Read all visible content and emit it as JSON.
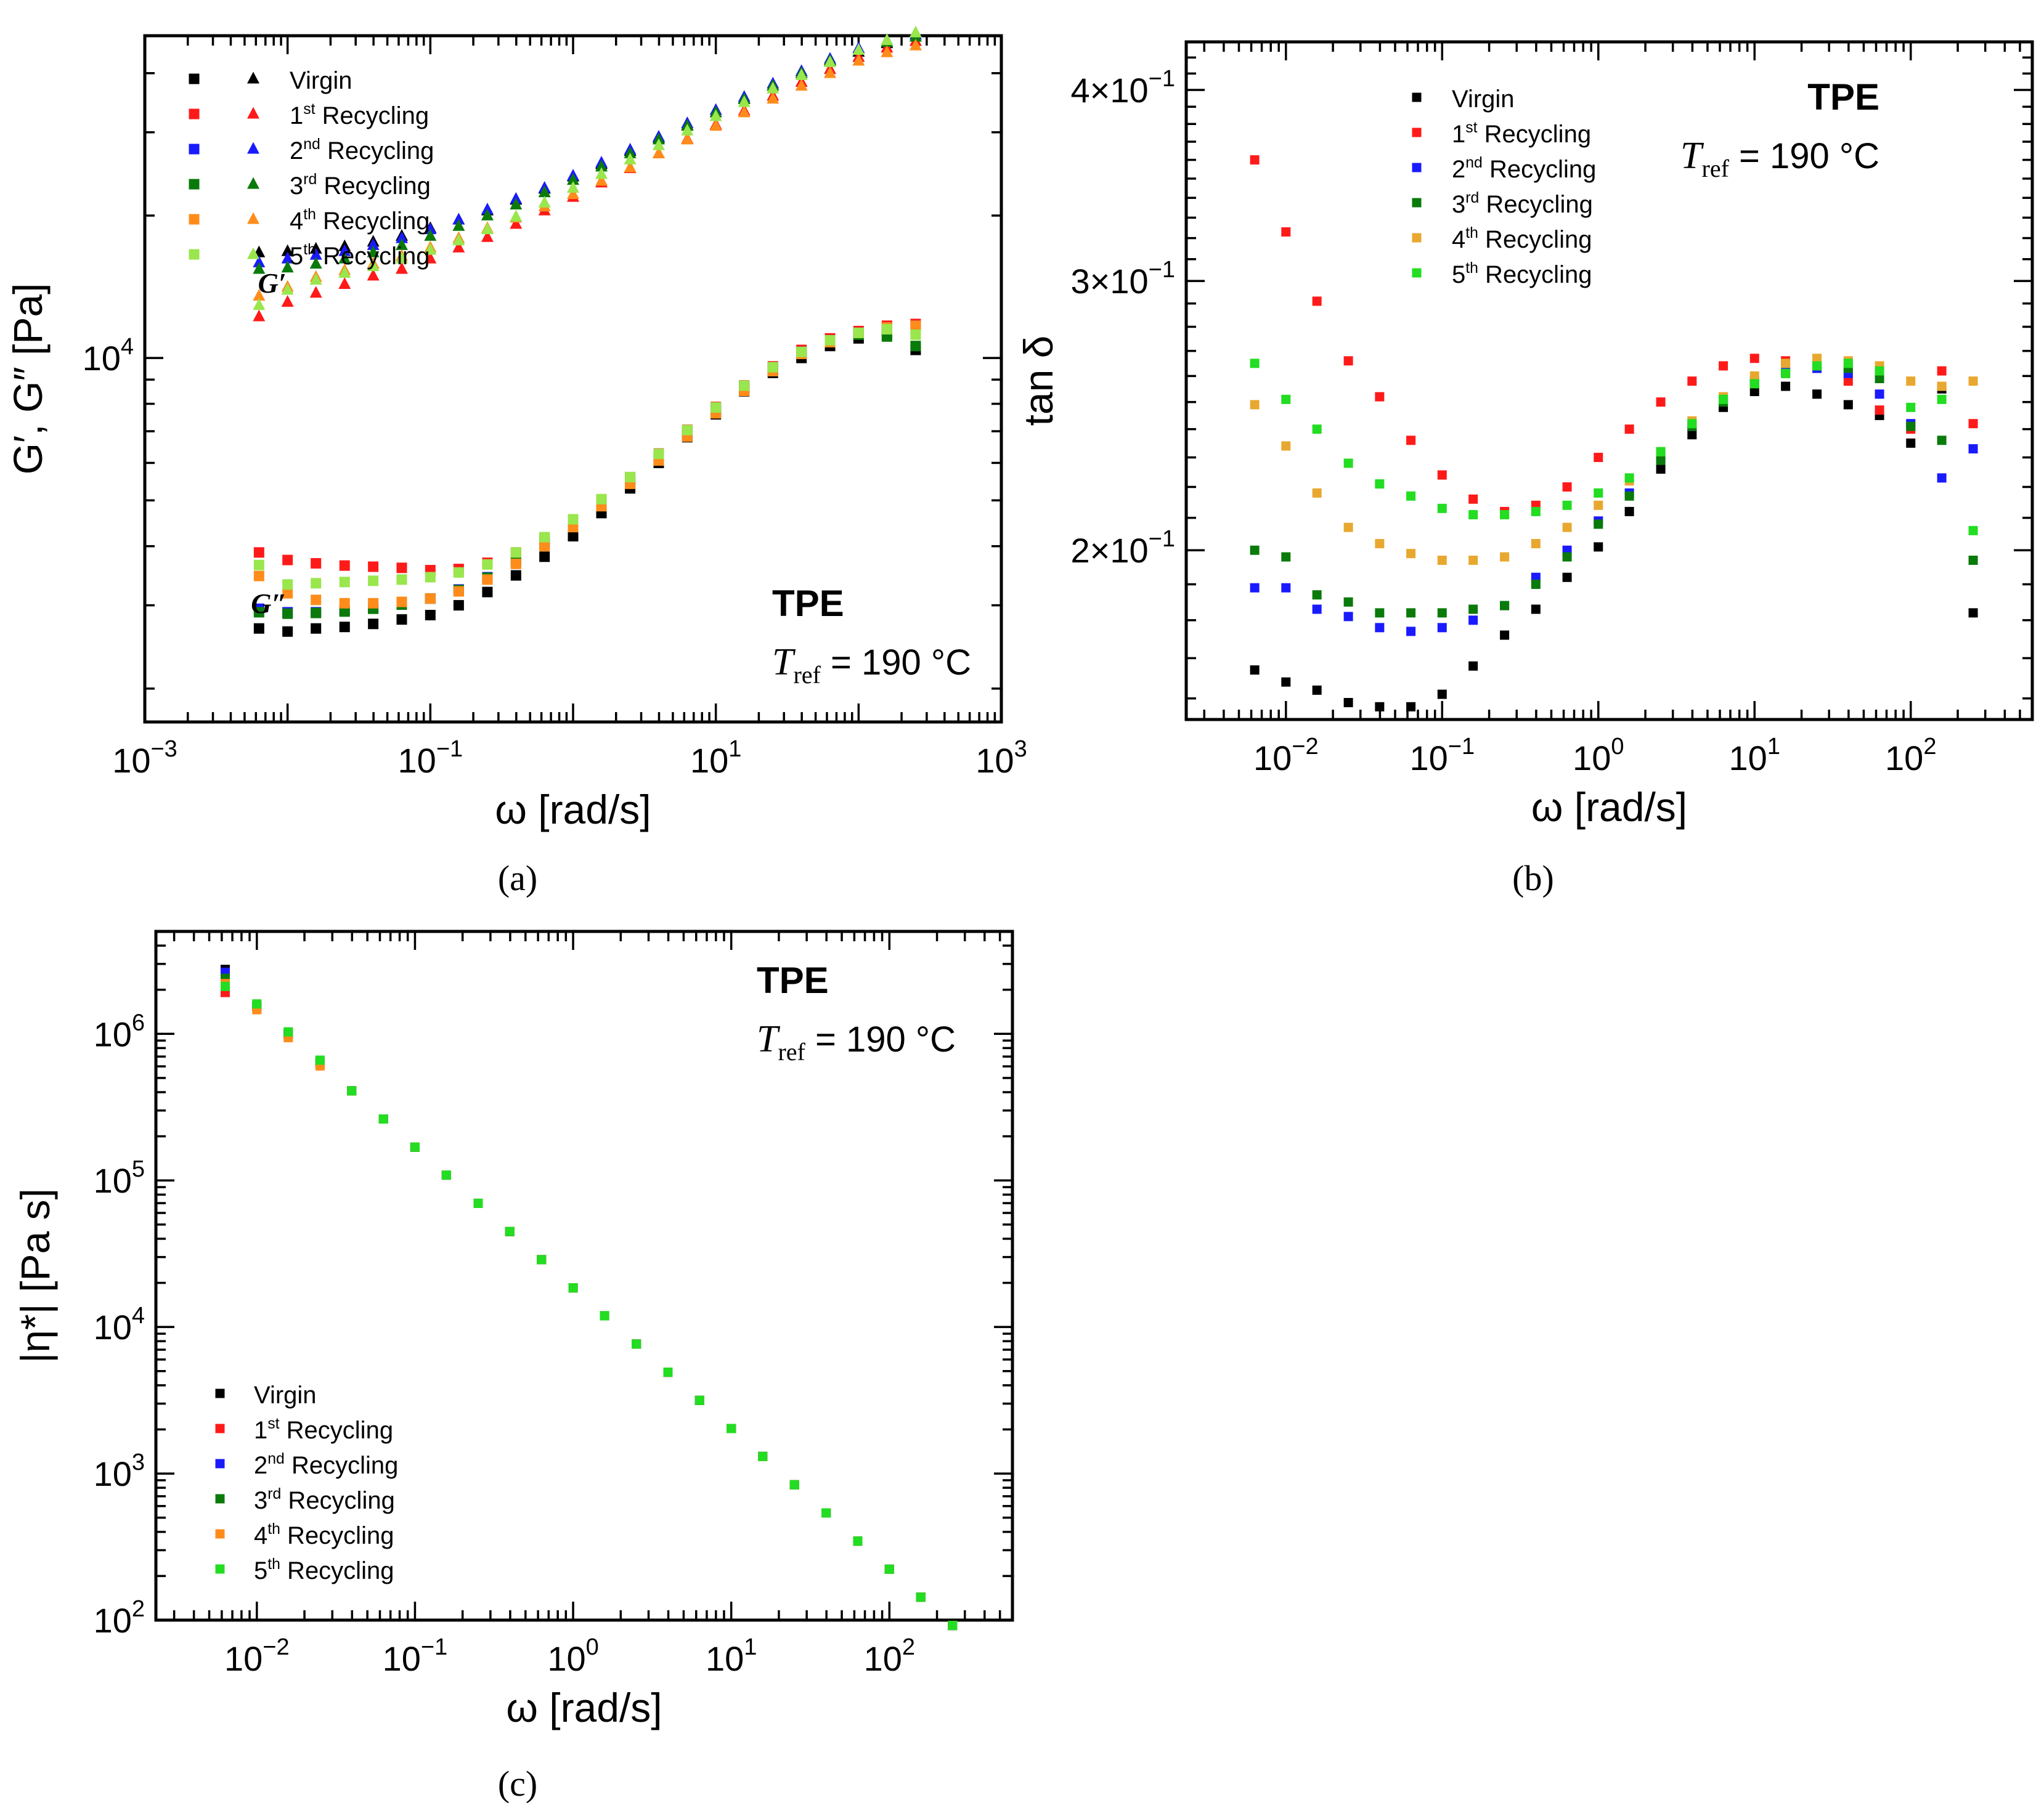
{
  "figure": {
    "colors": {
      "virgin": "#000000",
      "r1": "#ff1a1a",
      "r2": "#1a1aff",
      "r3": "#0a7a0a",
      "r4": "#ff8c1a",
      "r5": "#99e64d",
      "r4_b": "#e8a830",
      "r5_b": "#22dd22"
    },
    "legend_labels": [
      {
        "pre": "Virgin",
        "sup": "",
        "post": ""
      },
      {
        "pre": "1",
        "sup": "st",
        "post": " Recycling"
      },
      {
        "pre": "2",
        "sup": "nd",
        "post": " Recycling"
      },
      {
        "pre": "3",
        "sup": "rd",
        "post": " Recycling"
      },
      {
        "pre": "4",
        "sup": "th",
        "post": " Recycling"
      },
      {
        "pre": "5",
        "sup": "th",
        "post": " Recycling"
      }
    ],
    "material": "TPE",
    "tref": {
      "sym": "T",
      "sub": "ref",
      "val": " = 190 °C"
    },
    "captions": [
      "(a)",
      "(b)",
      "(c)"
    ]
  },
  "chart_data": [
    {
      "id": "a",
      "type": "scatter",
      "xscale": "log",
      "yscale": "log",
      "xlim": [
        0.001,
        1000
      ],
      "ylim": [
        1700,
        48000
      ],
      "xlabel": "ω [rad/s]",
      "ylabel": "G′, G″ [Pa]",
      "xticks": [
        {
          "v": 0.001,
          "b": "10",
          "e": "−3"
        },
        {
          "v": 0.1,
          "b": "10",
          "e": "−1"
        },
        {
          "v": 10,
          "b": "10",
          "e": "1"
        },
        {
          "v": 1000,
          "b": "10",
          "e": "3"
        }
      ],
      "yticks": [
        {
          "v": 10000,
          "b": "10",
          "e": "4"
        }
      ],
      "labels": [
        {
          "text": "G′",
          "omega": 0.0028,
          "value": 14500
        },
        {
          "text": "G″",
          "omega": 0.0025,
          "value": 3050
        }
      ],
      "x": [
        0.00631,
        0.01,
        0.0158,
        0.0251,
        0.0398,
        0.0631,
        0.1,
        0.158,
        0.251,
        0.398,
        0.631,
        1,
        1.58,
        2.51,
        3.98,
        6.31,
        10,
        15.8,
        25.1,
        39.8,
        63.1,
        100,
        158,
        251
      ],
      "series": [
        {
          "name": "Virgin",
          "color_key": "virgin",
          "G_prime": [
            16800,
            16900,
            17100,
            17300,
            17700,
            18200,
            18900,
            19700,
            20600,
            21700,
            22900,
            24300,
            25800,
            27500,
            29300,
            31200,
            33200,
            35500,
            37800,
            40200,
            42800,
            44600,
            46500,
            48000
          ],
          "G_double_prime": [
            2680,
            2640,
            2680,
            2700,
            2740,
            2800,
            2860,
            3000,
            3200,
            3470,
            3800,
            4200,
            4700,
            5300,
            6000,
            6800,
            7600,
            8500,
            9300,
            10000,
            10600,
            11000,
            11200,
            10400
          ]
        },
        {
          "name": "1st Recycling",
          "color_key": "r1",
          "G_prime": [
            12300,
            13200,
            13800,
            14400,
            15000,
            15500,
            16300,
            17200,
            18100,
            19300,
            20600,
            22000,
            23600,
            25300,
            27200,
            29200,
            31300,
            33500,
            36000,
            38500,
            41000,
            43500,
            45500,
            47000
          ],
          "G_double_prime": [
            3880,
            3740,
            3680,
            3640,
            3620,
            3600,
            3560,
            3580,
            3690,
            3880,
            4150,
            4540,
            5010,
            5600,
            6280,
            7050,
            7880,
            8750,
            9600,
            10400,
            11000,
            11400,
            11700,
            11800
          ]
        },
        {
          "name": "2nd Recycling",
          "color_key": "r2",
          "G_prime": [
            16000,
            16300,
            16600,
            16900,
            17400,
            18000,
            18800,
            19700,
            20700,
            21800,
            23000,
            24400,
            26000,
            27700,
            29500,
            31500,
            33600,
            35800,
            38200,
            40600,
            43100,
            45400,
            47200,
            48500
          ],
          "G_double_prime": [
            2950,
            2900,
            2900,
            2920,
            2960,
            3020,
            3100,
            3240,
            3440,
            3720,
            4060,
            4460,
            4940,
            5520,
            6200,
            6960,
            7800,
            8700,
            9550,
            10300,
            10900,
            11300,
            11600,
            11700
          ]
        },
        {
          "name": "3rd Recycling",
          "color_key": "r3",
          "G_prime": [
            15500,
            15600,
            15900,
            16300,
            16800,
            17400,
            18200,
            19100,
            20100,
            21200,
            22500,
            23900,
            25500,
            27200,
            29100,
            31100,
            33200,
            35400,
            37800,
            40200,
            42700,
            45000,
            46800,
            48000
          ],
          "G_double_prime": [
            2900,
            2880,
            2890,
            2910,
            2950,
            3010,
            3100,
            3230,
            3430,
            3700,
            4030,
            4420,
            4900,
            5460,
            6120,
            6880,
            7700,
            8600,
            9450,
            10200,
            10800,
            11200,
            11100,
            10600
          ]
        },
        {
          "name": "4th Recycling",
          "color_key": "r4",
          "G_prime": [
            13600,
            14200,
            14900,
            15400,
            15900,
            16500,
            17200,
            18000,
            18900,
            19900,
            21000,
            22300,
            23800,
            25400,
            27200,
            29100,
            31100,
            33200,
            35500,
            37800,
            40200,
            42700,
            44500,
            46000
          ],
          "G_double_prime": [
            3460,
            3180,
            3080,
            3030,
            3030,
            3050,
            3100,
            3210,
            3400,
            3670,
            4000,
            4390,
            4860,
            5420,
            6070,
            6820,
            7640,
            8520,
            9380,
            10200,
            10800,
            11300,
            11600,
            11700
          ]
        },
        {
          "name": "5th Recycling",
          "color_key": "r5",
          "G_prime": [
            13000,
            14000,
            14700,
            15200,
            15700,
            16300,
            17000,
            17800,
            18800,
            20000,
            21400,
            23000,
            24600,
            26400,
            28300,
            30400,
            32600,
            34900,
            37300,
            39800,
            42400,
            45000,
            47200,
            49000
          ],
          "G_double_prime": [
            3650,
            3320,
            3340,
            3360,
            3380,
            3400,
            3440,
            3520,
            3660,
            3880,
            4180,
            4560,
            5030,
            5600,
            6270,
            7040,
            7860,
            8740,
            9560,
            10300,
            10900,
            11300,
            11500,
            11200
          ]
        }
      ]
    },
    {
      "id": "b",
      "type": "scatter",
      "xscale": "log",
      "yscale": "log",
      "xlim": [
        0.0023,
        600
      ],
      "ylim": [
        0.155,
        0.43
      ],
      "xlabel": "ω [rad/s]",
      "ylabel": "tan δ",
      "xticks": [
        {
          "v": 0.01,
          "b": "10",
          "e": "−2"
        },
        {
          "v": 0.1,
          "b": "10",
          "e": "−1"
        },
        {
          "v": 1,
          "b": "10",
          "e": "0"
        },
        {
          "v": 10,
          "b": "10",
          "e": "1"
        },
        {
          "v": 100,
          "b": "10",
          "e": "2"
        }
      ],
      "yticks": [
        {
          "v": 0.2,
          "b": "2×10",
          "e": "−1"
        },
        {
          "v": 0.3,
          "b": "3×10",
          "e": "−1"
        },
        {
          "v": 0.4,
          "b": "4×10",
          "e": "−1"
        }
      ],
      "x": [
        0.00631,
        0.01,
        0.0158,
        0.0251,
        0.0398,
        0.0631,
        0.1,
        0.158,
        0.251,
        0.398,
        0.631,
        1,
        1.58,
        2.51,
        3.98,
        6.31,
        10,
        15.8,
        25.1,
        39.8,
        63.1,
        100,
        158,
        251
      ],
      "series": [
        {
          "name": "Virgin",
          "color_key": "virgin",
          "values": [
            0.167,
            0.164,
            0.162,
            0.159,
            0.158,
            0.158,
            0.161,
            0.168,
            0.176,
            0.183,
            0.192,
            0.201,
            0.212,
            0.226,
            0.238,
            0.248,
            0.254,
            0.256,
            0.253,
            0.249,
            0.245,
            0.235,
            0.255,
            0.182
          ]
        },
        {
          "name": "1st Recycling",
          "color_key": "r1",
          "values": [
            0.36,
            0.323,
            0.291,
            0.266,
            0.252,
            0.236,
            0.224,
            0.216,
            0.212,
            0.214,
            0.22,
            0.23,
            0.24,
            0.25,
            0.258,
            0.264,
            0.267,
            0.266,
            0.264,
            0.258,
            0.247,
            0.24,
            0.262,
            0.242
          ]
        },
        {
          "name": "2nd Recycling",
          "color_key": "r2",
          "values": [
            0.189,
            0.189,
            0.183,
            0.181,
            0.178,
            0.177,
            0.178,
            0.18,
            0.184,
            0.192,
            0.2,
            0.209,
            0.218,
            0.23,
            0.241,
            0.251,
            0.258,
            0.262,
            0.263,
            0.261,
            0.253,
            0.242,
            0.223,
            0.233
          ]
        },
        {
          "name": "3rd Recycling",
          "color_key": "r3",
          "values": [
            0.2,
            0.198,
            0.187,
            0.185,
            0.182,
            0.182,
            0.182,
            0.183,
            0.184,
            0.19,
            0.198,
            0.208,
            0.217,
            0.229,
            0.241,
            0.25,
            0.257,
            0.261,
            0.264,
            0.263,
            0.259,
            0.241,
            0.236,
            0.197
          ]
        },
        {
          "name": "4th Recycling",
          "color_key": "r4_b",
          "values": [
            0.249,
            0.234,
            0.218,
            0.207,
            0.202,
            0.199,
            0.197,
            0.197,
            0.198,
            0.202,
            0.207,
            0.214,
            0.222,
            0.232,
            0.243,
            0.252,
            0.26,
            0.265,
            0.267,
            0.266,
            0.264,
            0.258,
            0.256,
            0.258
          ]
        },
        {
          "name": "5th Recycling",
          "color_key": "r5_b",
          "values": [
            0.265,
            0.251,
            0.24,
            0.228,
            0.221,
            0.217,
            0.213,
            0.211,
            0.211,
            0.212,
            0.214,
            0.218,
            0.223,
            0.232,
            0.242,
            0.251,
            0.257,
            0.261,
            0.264,
            0.265,
            0.262,
            0.248,
            0.251,
            0.206
          ]
        }
      ]
    },
    {
      "id": "c",
      "type": "scatter",
      "xscale": "log",
      "yscale": "log",
      "xlim": [
        0.0023,
        600
      ],
      "ylim": [
        100,
        5000000
      ],
      "xlabel": "ω [rad/s]",
      "ylabel": "|η*| [Pa s]",
      "xticks": [
        {
          "v": 0.01,
          "b": "10",
          "e": "−2"
        },
        {
          "v": 0.1,
          "b": "10",
          "e": "−1"
        },
        {
          "v": 1,
          "b": "10",
          "e": "0"
        },
        {
          "v": 10,
          "b": "10",
          "e": "1"
        },
        {
          "v": 100,
          "b": "10",
          "e": "2"
        }
      ],
      "yticks": [
        {
          "v": 100,
          "b": "10",
          "e": "2"
        },
        {
          "v": 1000,
          "b": "10",
          "e": "3"
        },
        {
          "v": 10000,
          "b": "10",
          "e": "4"
        },
        {
          "v": 100000,
          "b": "10",
          "e": "5"
        },
        {
          "v": 1000000,
          "b": "10",
          "e": "6"
        }
      ],
      "x": [
        0.00631,
        0.01,
        0.0158,
        0.0251,
        0.0398,
        0.0631,
        0.1,
        0.158,
        0.251,
        0.398,
        0.631,
        1,
        1.58,
        2.51,
        3.98,
        6.31,
        10,
        15.8,
        25.1,
        39.8,
        63.1,
        100,
        158,
        251
      ],
      "reference_line": "eta ≈ 18500 * omega^-0.96 (all six series overlap within marker size)",
      "series": [
        {
          "name": "Virgin",
          "color_key": "virgin",
          "offsets": [
            1.15,
            1.0
          ]
        },
        {
          "name": "1st Recycling",
          "color_key": "r1",
          "offsets": [
            0.8,
            1.0
          ]
        },
        {
          "name": "2nd Recycling",
          "color_key": "r2",
          "offsets": [
            1.1,
            1.0
          ]
        },
        {
          "name": "3rd Recycling",
          "color_key": "r3",
          "offsets": [
            1.0,
            1.0
          ]
        },
        {
          "name": "4th Recycling",
          "color_key": "r4",
          "offsets": [
            0.92,
            0.95
          ]
        },
        {
          "name": "5th Recycling",
          "color_key": "r5_b",
          "offsets": [
            0.88,
            1.04
          ]
        }
      ]
    }
  ]
}
